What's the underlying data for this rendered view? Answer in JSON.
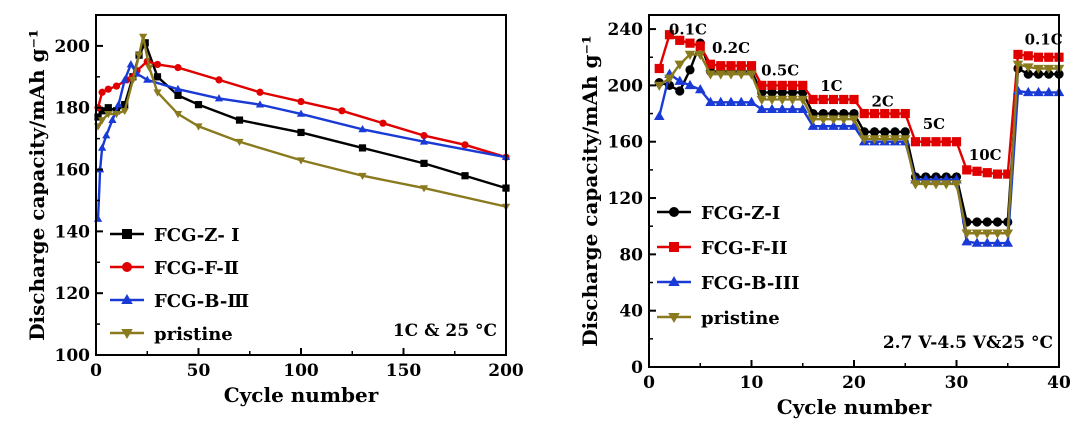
{
  "chart_data": [
    {
      "type": "scatter",
      "xlabel": "Cycle number",
      "ylabel": "Discharge capacity/mAh g⁻¹",
      "xlim": [
        0,
        200
      ],
      "ylim": [
        100,
        210
      ],
      "xticks": [
        0,
        50,
        100,
        150,
        200
      ],
      "yticks": [
        100,
        120,
        140,
        160,
        180,
        200
      ],
      "annotation": "1C & 25 °C",
      "legend_position": "bottom-left",
      "series": [
        {
          "name": "FCG-Z- Ⅰ",
          "color": "#000000",
          "marker": "square",
          "x": [
            1,
            3,
            6,
            10,
            14,
            18,
            21,
            24,
            30,
            40,
            50,
            70,
            100,
            130,
            160,
            180,
            200
          ],
          "y": [
            177,
            179,
            180,
            179,
            181,
            190,
            197,
            201,
            190,
            184,
            181,
            176,
            172,
            167,
            162,
            158,
            154
          ]
        },
        {
          "name": "FCG-F-Ⅱ",
          "color": "#e00000",
          "marker": "circle",
          "x": [
            1,
            3,
            6,
            10,
            15,
            20,
            25,
            30,
            40,
            60,
            80,
            100,
            120,
            140,
            160,
            180,
            200
          ],
          "y": [
            180,
            185,
            186,
            187,
            189,
            192,
            195,
            194,
            193,
            189,
            185,
            182,
            179,
            175,
            171,
            168,
            164
          ]
        },
        {
          "name": "FCG-B-Ⅲ",
          "color": "#1a3ad6",
          "marker": "triangle-up",
          "x": [
            1,
            2,
            3,
            5,
            8,
            11,
            14,
            17,
            20,
            25,
            40,
            60,
            80,
            100,
            130,
            160,
            200
          ],
          "y": [
            144,
            160,
            167,
            171,
            176,
            181,
            189,
            194,
            191,
            189,
            186,
            183,
            181,
            178,
            173,
            169,
            164
          ]
        },
        {
          "name": "pristine",
          "color": "#8a7a1e",
          "marker": "triangle-down",
          "x": [
            1,
            3,
            6,
            10,
            14,
            18,
            21,
            23,
            26,
            30,
            40,
            50,
            70,
            100,
            130,
            160,
            200
          ],
          "y": [
            174,
            176,
            178,
            178,
            179,
            189,
            197,
            203,
            193,
            185,
            178,
            174,
            169,
            163,
            158,
            154,
            148
          ]
        }
      ]
    },
    {
      "type": "scatter",
      "xlabel": "Cycle number",
      "ylabel": "Discharge capacity/mAh g⁻¹",
      "xlim": [
        0,
        40
      ],
      "ylim": [
        0,
        250
      ],
      "xticks": [
        0,
        10,
        20,
        30,
        40
      ],
      "yticks": [
        0,
        40,
        80,
        120,
        160,
        200,
        240
      ],
      "annotation": "2.7 V-4.5 V&25 °C",
      "legend_position": "bottom-left",
      "rate_labels": [
        {
          "text": "0.1C",
          "x": 3.8,
          "y": 236
        },
        {
          "text": "0.2C",
          "x": 8.0,
          "y": 223
        },
        {
          "text": "0.5C",
          "x": 12.8,
          "y": 207
        },
        {
          "text": "1C",
          "x": 17.8,
          "y": 196
        },
        {
          "text": "2C",
          "x": 22.8,
          "y": 185
        },
        {
          "text": "5C",
          "x": 27.8,
          "y": 169
        },
        {
          "text": "10C",
          "x": 32.8,
          "y": 147
        },
        {
          "text": "0.1C",
          "x": 38.5,
          "y": 229
        }
      ],
      "series": [
        {
          "name": "FCG-Z-I",
          "color": "#000000",
          "marker": "circle",
          "x": [
            1,
            2,
            3,
            4,
            5,
            6,
            7,
            8,
            9,
            10,
            11,
            12,
            13,
            14,
            15,
            16,
            17,
            18,
            19,
            20,
            21,
            22,
            23,
            24,
            25,
            26,
            27,
            28,
            29,
            30,
            31,
            32,
            33,
            34,
            35,
            36,
            37,
            38,
            39,
            40
          ],
          "y": [
            202,
            200,
            196,
            211,
            230,
            210,
            210,
            210,
            210,
            210,
            195,
            195,
            195,
            195,
            195,
            180,
            180,
            180,
            180,
            180,
            167,
            167,
            167,
            167,
            167,
            135,
            135,
            135,
            135,
            135,
            103,
            103,
            103,
            103,
            103,
            212,
            208,
            208,
            208,
            208
          ]
        },
        {
          "name": "FCG-F-II",
          "color": "#e00000",
          "marker": "square",
          "x": [
            1,
            2,
            3,
            4,
            5,
            6,
            7,
            8,
            9,
            10,
            11,
            12,
            13,
            14,
            15,
            16,
            17,
            18,
            19,
            20,
            21,
            22,
            23,
            24,
            25,
            26,
            27,
            28,
            29,
            30,
            31,
            32,
            33,
            34,
            35,
            36,
            37,
            38,
            39,
            40
          ],
          "y": [
            212,
            236,
            232,
            230,
            228,
            215,
            214,
            214,
            214,
            214,
            200,
            200,
            200,
            200,
            200,
            190,
            190,
            190,
            190,
            190,
            180,
            180,
            180,
            180,
            180,
            160,
            160,
            160,
            160,
            160,
            140,
            139,
            138,
            137,
            137,
            222,
            221,
            220,
            220,
            220
          ]
        },
        {
          "name": "FCG-B-III",
          "color": "#1a3ad6",
          "marker": "triangle-up",
          "x": [
            1,
            2,
            3,
            4,
            5,
            6,
            7,
            8,
            9,
            10,
            11,
            12,
            13,
            14,
            15,
            16,
            17,
            18,
            19,
            20,
            21,
            22,
            23,
            24,
            25,
            26,
            27,
            28,
            29,
            30,
            31,
            32,
            33,
            34,
            35,
            36,
            37,
            38,
            39,
            40
          ],
          "y": [
            178,
            208,
            203,
            200,
            197,
            188,
            188,
            188,
            188,
            188,
            183,
            183,
            183,
            183,
            183,
            171,
            171,
            171,
            171,
            171,
            160,
            160,
            160,
            160,
            160,
            133,
            133,
            133,
            133,
            133,
            89,
            88,
            88,
            88,
            88,
            196,
            195,
            195,
            195,
            195
          ]
        },
        {
          "name": "pristine",
          "color": "#8a7a1e",
          "marker": "triangle-down",
          "x": [
            1,
            2,
            3,
            4,
            5,
            6,
            7,
            8,
            9,
            10,
            11,
            12,
            13,
            14,
            15,
            16,
            17,
            18,
            19,
            20,
            21,
            22,
            23,
            24,
            25,
            26,
            27,
            28,
            29,
            30,
            31,
            32,
            33,
            34,
            35,
            36,
            37,
            38,
            39,
            40
          ],
          "y": [
            200,
            205,
            215,
            222,
            222,
            208,
            208,
            208,
            208,
            208,
            190,
            190,
            190,
            190,
            190,
            176,
            176,
            176,
            176,
            176,
            162,
            162,
            162,
            162,
            162,
            130,
            130,
            130,
            130,
            130,
            95,
            95,
            95,
            95,
            95,
            215,
            213,
            212,
            212,
            212
          ]
        }
      ]
    }
  ]
}
